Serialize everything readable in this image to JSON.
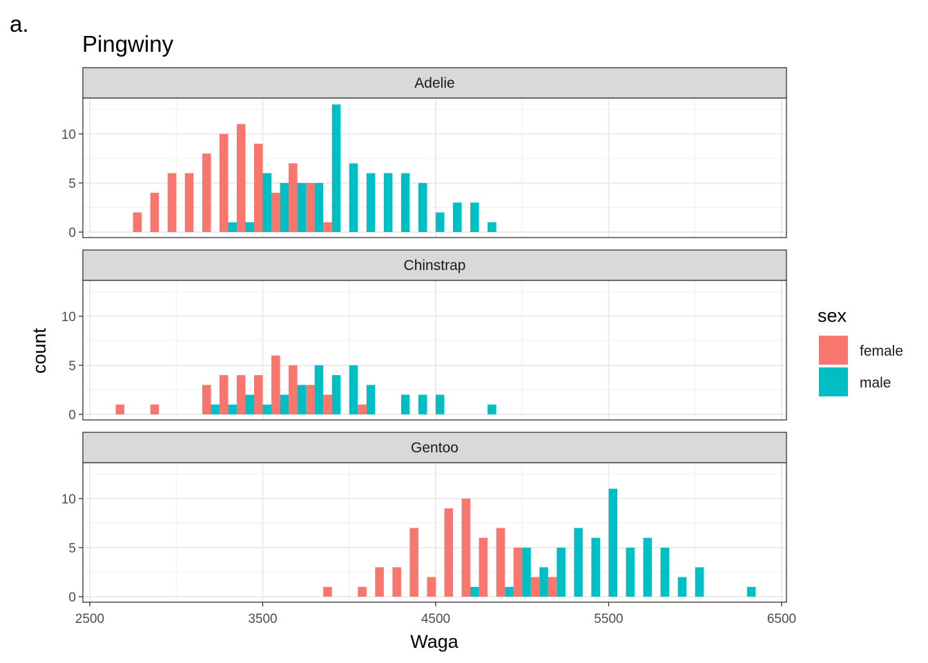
{
  "chart_data": {
    "type": "bar",
    "tag": "a.",
    "title": "Pingwiny",
    "xlabel": "Waga",
    "ylabel": "count",
    "xlim": [
      2450,
      6500
    ],
    "ylim": [
      0,
      13.65
    ],
    "x_ticks": [
      2500,
      3500,
      4500,
      5500,
      6500
    ],
    "y_ticks": [
      0,
      5,
      10
    ],
    "bin_width": 100,
    "grid": true,
    "legend": {
      "title": "sex",
      "placement": "right",
      "entries": [
        {
          "name": "female",
          "color": "#F8766D"
        },
        {
          "name": "male",
          "color": "#00BFC4"
        }
      ]
    },
    "series_colors": {
      "female": "#F8766D",
      "male": "#00BFC4"
    },
    "panels": [
      {
        "name": "Adelie",
        "bars": [
          {
            "x": 2800,
            "sex": "female",
            "count": 2
          },
          {
            "x": 2900,
            "sex": "female",
            "count": 4
          },
          {
            "x": 3000,
            "sex": "female",
            "count": 6
          },
          {
            "x": 3100,
            "sex": "female",
            "count": 6
          },
          {
            "x": 3200,
            "sex": "female",
            "count": 8
          },
          {
            "x": 3300,
            "sex": "female",
            "count": 10
          },
          {
            "x": 3300,
            "sex": "male",
            "count": 1
          },
          {
            "x": 3400,
            "sex": "female",
            "count": 11
          },
          {
            "x": 3400,
            "sex": "male",
            "count": 1
          },
          {
            "x": 3500,
            "sex": "female",
            "count": 9
          },
          {
            "x": 3500,
            "sex": "male",
            "count": 6
          },
          {
            "x": 3600,
            "sex": "female",
            "count": 4
          },
          {
            "x": 3600,
            "sex": "male",
            "count": 5
          },
          {
            "x": 3700,
            "sex": "female",
            "count": 7
          },
          {
            "x": 3700,
            "sex": "male",
            "count": 5
          },
          {
            "x": 3800,
            "sex": "female",
            "count": 5
          },
          {
            "x": 3800,
            "sex": "male",
            "count": 5
          },
          {
            "x": 3900,
            "sex": "female",
            "count": 1
          },
          {
            "x": 3900,
            "sex": "male",
            "count": 13
          },
          {
            "x": 4000,
            "sex": "male",
            "count": 7
          },
          {
            "x": 4100,
            "sex": "male",
            "count": 6
          },
          {
            "x": 4200,
            "sex": "male",
            "count": 6
          },
          {
            "x": 4300,
            "sex": "male",
            "count": 6
          },
          {
            "x": 4400,
            "sex": "male",
            "count": 5
          },
          {
            "x": 4500,
            "sex": "male",
            "count": 2
          },
          {
            "x": 4600,
            "sex": "male",
            "count": 3
          },
          {
            "x": 4700,
            "sex": "male",
            "count": 3
          },
          {
            "x": 4800,
            "sex": "male",
            "count": 1
          }
        ]
      },
      {
        "name": "Chinstrap",
        "bars": [
          {
            "x": 2700,
            "sex": "female",
            "count": 1
          },
          {
            "x": 2900,
            "sex": "female",
            "count": 1
          },
          {
            "x": 3200,
            "sex": "female",
            "count": 3
          },
          {
            "x": 3200,
            "sex": "male",
            "count": 1
          },
          {
            "x": 3300,
            "sex": "female",
            "count": 4
          },
          {
            "x": 3300,
            "sex": "male",
            "count": 1
          },
          {
            "x": 3400,
            "sex": "female",
            "count": 4
          },
          {
            "x": 3400,
            "sex": "male",
            "count": 2
          },
          {
            "x": 3500,
            "sex": "female",
            "count": 4
          },
          {
            "x": 3500,
            "sex": "male",
            "count": 1
          },
          {
            "x": 3600,
            "sex": "female",
            "count": 6
          },
          {
            "x": 3600,
            "sex": "male",
            "count": 2
          },
          {
            "x": 3700,
            "sex": "female",
            "count": 5
          },
          {
            "x": 3700,
            "sex": "male",
            "count": 3
          },
          {
            "x": 3800,
            "sex": "female",
            "count": 3
          },
          {
            "x": 3800,
            "sex": "male",
            "count": 5
          },
          {
            "x": 3900,
            "sex": "female",
            "count": 2
          },
          {
            "x": 3900,
            "sex": "male",
            "count": 4
          },
          {
            "x": 4000,
            "sex": "male",
            "count": 5
          },
          {
            "x": 4100,
            "sex": "female",
            "count": 1
          },
          {
            "x": 4100,
            "sex": "male",
            "count": 3
          },
          {
            "x": 4300,
            "sex": "male",
            "count": 2
          },
          {
            "x": 4400,
            "sex": "male",
            "count": 2
          },
          {
            "x": 4500,
            "sex": "male",
            "count": 2
          },
          {
            "x": 4800,
            "sex": "male",
            "count": 1
          }
        ]
      },
      {
        "name": "Gentoo",
        "bars": [
          {
            "x": 3900,
            "sex": "female",
            "count": 1
          },
          {
            "x": 4100,
            "sex": "female",
            "count": 1
          },
          {
            "x": 4200,
            "sex": "female",
            "count": 3
          },
          {
            "x": 4300,
            "sex": "female",
            "count": 3
          },
          {
            "x": 4400,
            "sex": "female",
            "count": 7
          },
          {
            "x": 4500,
            "sex": "female",
            "count": 2
          },
          {
            "x": 4600,
            "sex": "female",
            "count": 9
          },
          {
            "x": 4700,
            "sex": "female",
            "count": 10
          },
          {
            "x": 4700,
            "sex": "male",
            "count": 1
          },
          {
            "x": 4800,
            "sex": "female",
            "count": 6
          },
          {
            "x": 4900,
            "sex": "female",
            "count": 7
          },
          {
            "x": 4900,
            "sex": "male",
            "count": 1
          },
          {
            "x": 5000,
            "sex": "female",
            "count": 5
          },
          {
            "x": 5000,
            "sex": "male",
            "count": 5
          },
          {
            "x": 5100,
            "sex": "female",
            "count": 2
          },
          {
            "x": 5100,
            "sex": "male",
            "count": 3
          },
          {
            "x": 5200,
            "sex": "female",
            "count": 2
          },
          {
            "x": 5200,
            "sex": "male",
            "count": 5
          },
          {
            "x": 5300,
            "sex": "male",
            "count": 7
          },
          {
            "x": 5400,
            "sex": "male",
            "count": 6
          },
          {
            "x": 5500,
            "sex": "male",
            "count": 11
          },
          {
            "x": 5600,
            "sex": "male",
            "count": 5
          },
          {
            "x": 5700,
            "sex": "male",
            "count": 6
          },
          {
            "x": 5800,
            "sex": "male",
            "count": 5
          },
          {
            "x": 5900,
            "sex": "male",
            "count": 2
          },
          {
            "x": 6000,
            "sex": "male",
            "count": 3
          },
          {
            "x": 6300,
            "sex": "male",
            "count": 1
          }
        ]
      }
    ]
  }
}
